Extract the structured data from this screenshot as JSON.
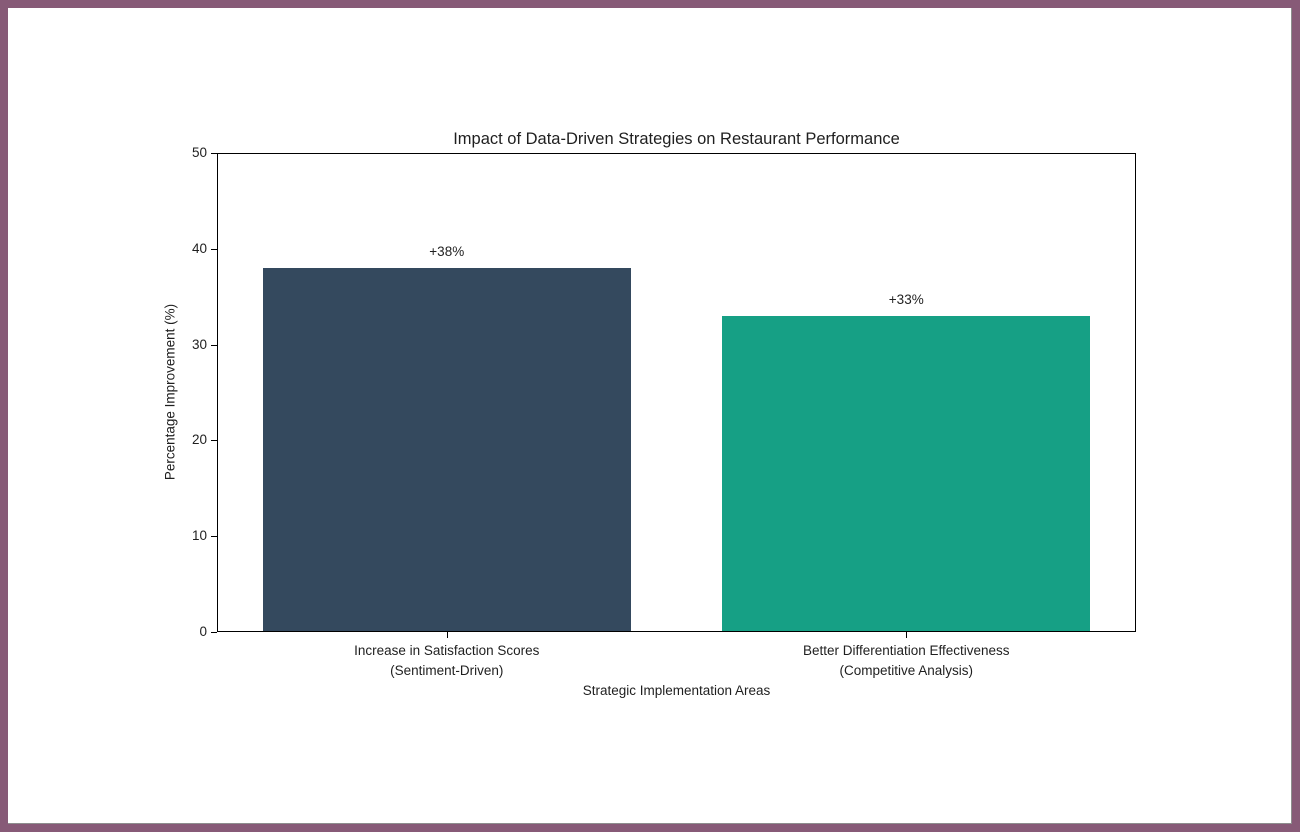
{
  "page": {
    "border_color": "#875A77",
    "background_color": "#ffffff"
  },
  "chart_data": {
    "type": "bar",
    "title": "Impact of Data-Driven Strategies on Restaurant Performance",
    "xlabel": "Strategic Implementation Areas",
    "ylabel": "Percentage Improvement (%)",
    "categories": [
      "Increase in Satisfaction Scores\n(Sentiment-Driven)",
      "Better Differentiation Effectiveness\n(Competitive Analysis)"
    ],
    "values": [
      38,
      33
    ],
    "bar_labels": [
      "+38%",
      "+33%"
    ],
    "bar_colors": [
      "#34495E",
      "#16A085"
    ],
    "ylim": [
      0,
      50
    ],
    "yticks": [
      0,
      10,
      20,
      30,
      40,
      50
    ],
    "bar_width_fraction": 0.8,
    "grid": false,
    "legend": "none",
    "spines": "full-box",
    "text_color": "#1f1f1f"
  }
}
